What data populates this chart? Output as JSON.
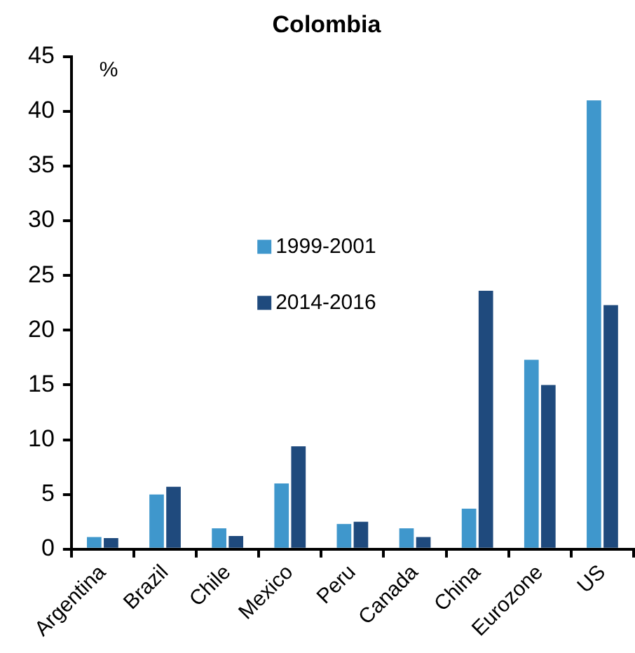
{
  "chart_data": {
    "type": "bar",
    "title": "Colombia",
    "ylabel": "%",
    "categories": [
      "Argentina",
      "Brazil",
      "Chile",
      "Mexico",
      "Peru",
      "Canada",
      "China",
      "Eurozone",
      "US"
    ],
    "series": [
      {
        "name": "1999-2001",
        "color": "#3f97cc",
        "values": [
          1.1,
          5.0,
          1.9,
          6.0,
          2.3,
          1.9,
          3.7,
          17.3,
          41.0
        ]
      },
      {
        "name": "2014-2016",
        "color": "#1f4a7d",
        "values": [
          1.0,
          5.7,
          1.2,
          9.4,
          2.5,
          1.1,
          23.6,
          15.0,
          22.3
        ]
      }
    ],
    "ylim": [
      0,
      45
    ],
    "yticks": [
      0,
      5,
      10,
      15,
      20,
      25,
      30,
      35,
      40,
      45
    ],
    "grid": false,
    "legend": "center"
  }
}
